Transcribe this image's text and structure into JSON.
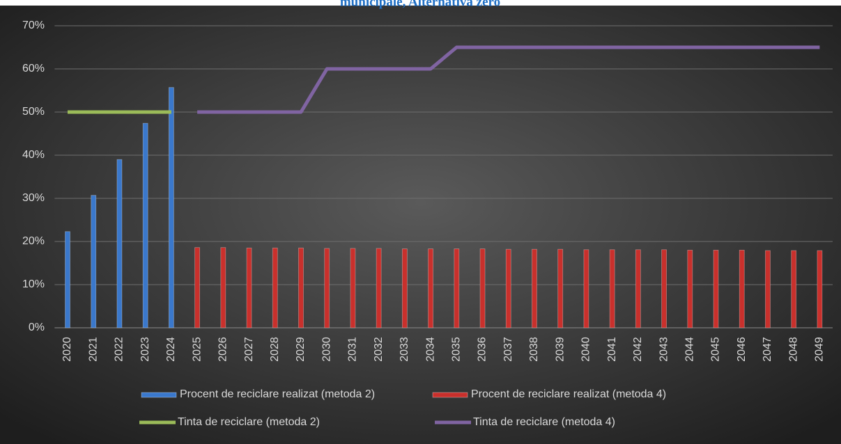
{
  "chart_data": {
    "type": "bar",
    "title": "municipale, Alternativa zero",
    "categories": [
      "2020",
      "2021",
      "2022",
      "2023",
      "2024",
      "2025",
      "2026",
      "2027",
      "2028",
      "2029",
      "2030",
      "2031",
      "2032",
      "2033",
      "2034",
      "2035",
      "2036",
      "2037",
      "2038",
      "2039",
      "2040",
      "2041",
      "2042",
      "2043",
      "2044",
      "2045",
      "2046",
      "2047",
      "2048",
      "2049"
    ],
    "series": [
      {
        "name": "Procent de reciclare realizat (metoda 2)",
        "type": "bar",
        "color": "#3a78cc",
        "values": [
          22.3,
          30.7,
          39,
          47.4,
          55.7,
          null,
          null,
          null,
          null,
          null,
          null,
          null,
          null,
          null,
          null,
          null,
          null,
          null,
          null,
          null,
          null,
          null,
          null,
          null,
          null,
          null,
          null,
          null,
          null,
          null
        ]
      },
      {
        "name": "Procent de reciclare realizat (metoda 4)",
        "type": "bar",
        "color": "#c9302c",
        "values": [
          null,
          null,
          null,
          null,
          null,
          18.6,
          18.6,
          18.5,
          18.5,
          18.5,
          18.4,
          18.4,
          18.4,
          18.3,
          18.3,
          18.3,
          18.3,
          18.2,
          18.2,
          18.2,
          18.1,
          18.1,
          18.1,
          18.1,
          18.0,
          18.0,
          18.0,
          17.9,
          17.9,
          17.9
        ]
      },
      {
        "name": "Tinta de reciclare (metoda 2)",
        "type": "line",
        "color": "#9bbb59",
        "values": [
          50,
          50,
          50,
          50,
          50,
          null,
          null,
          null,
          null,
          null,
          null,
          null,
          null,
          null,
          null,
          null,
          null,
          null,
          null,
          null,
          null,
          null,
          null,
          null,
          null,
          null,
          null,
          null,
          null,
          null
        ]
      },
      {
        "name": "Tinta de reciclare (metoda 4)",
        "type": "line",
        "color": "#8064a2",
        "values": [
          null,
          null,
          null,
          null,
          null,
          50,
          50,
          50,
          50,
          50,
          60,
          60,
          60,
          60,
          60,
          65,
          65,
          65,
          65,
          65,
          65,
          65,
          65,
          65,
          65,
          65,
          65,
          65,
          65,
          65
        ]
      }
    ],
    "ylim": [
      0,
      70
    ],
    "yticks": [
      {
        "value": 0,
        "label": "0%"
      },
      {
        "value": 10,
        "label": "10%"
      },
      {
        "value": 20,
        "label": "20%"
      },
      {
        "value": 30,
        "label": "30%"
      },
      {
        "value": 40,
        "label": "40%"
      },
      {
        "value": 50,
        "label": "50%"
      },
      {
        "value": 60,
        "label": "60%"
      },
      {
        "value": 70,
        "label": "70%"
      }
    ],
    "grid": true
  }
}
